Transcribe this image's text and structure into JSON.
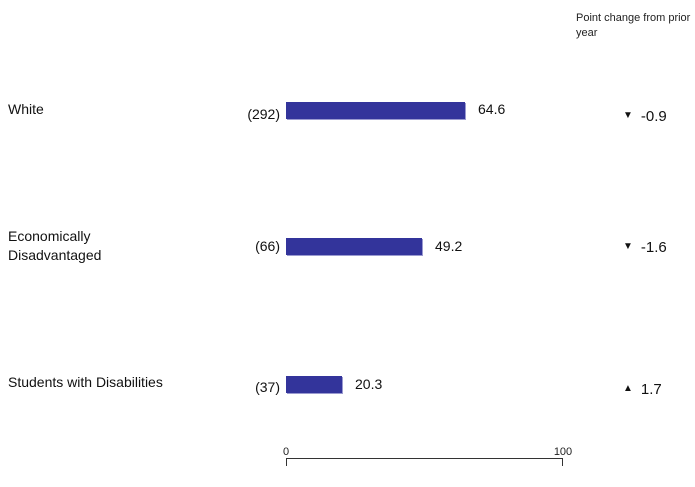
{
  "chart_data": {
    "type": "bar",
    "orientation": "horizontal",
    "categories": [
      "White",
      "Economically Disadvantaged",
      "Students with Disabilities"
    ],
    "values": [
      64.6,
      49.2,
      20.3
    ],
    "counts": [
      "(292)",
      "(66)",
      "(37)"
    ],
    "change_header": "Point change from prior year",
    "changes": [
      {
        "text": "-0.9",
        "direction": "down"
      },
      {
        "text": "-1.6",
        "direction": "down"
      },
      {
        "text": "1.7",
        "direction": "up"
      }
    ],
    "xlim": [
      0,
      100
    ],
    "x_ticks": [
      "0",
      "100"
    ],
    "bar_color": "#33349b",
    "grid": false
  }
}
